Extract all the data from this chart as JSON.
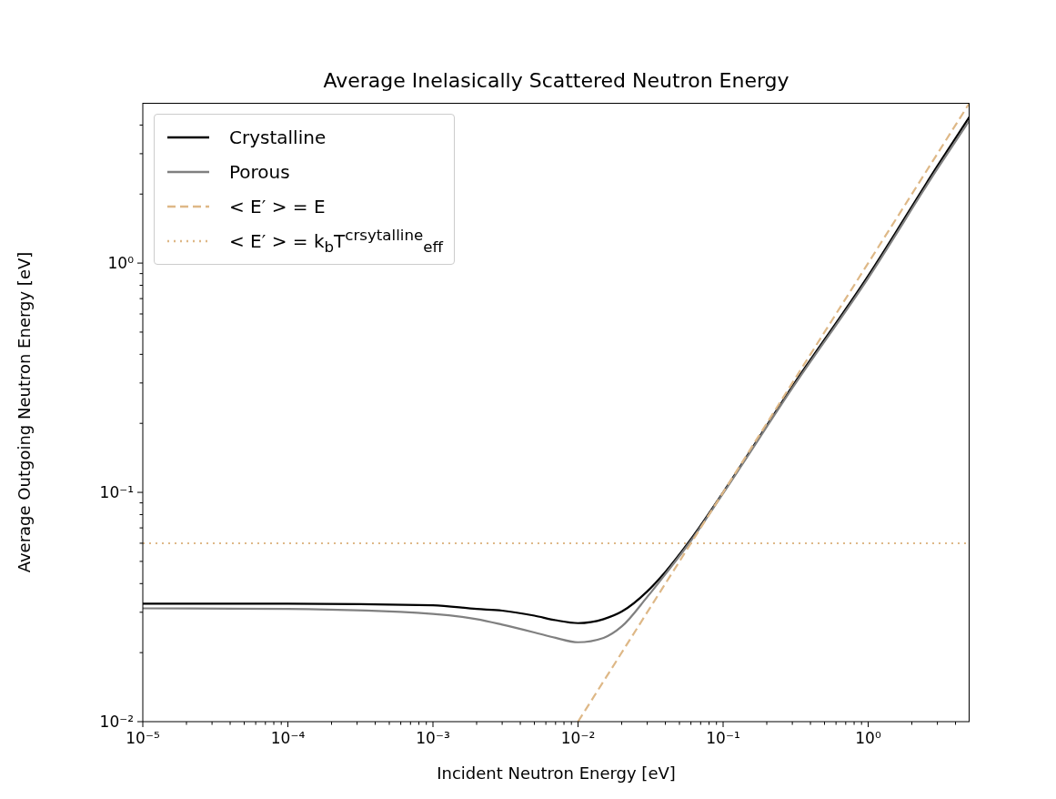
{
  "chart_data": {
    "type": "line",
    "title": "Average Inelasically Scattered Neutron Energy",
    "xlabel": "Incident Neutron Energy [eV]",
    "ylabel": "Average Outgoing Neutron Energy [eV]",
    "log": "xy",
    "legend": "top left",
    "marker": "none",
    "xlim": [
      1e-05,
      5
    ],
    "ylim": [
      0.01,
      5
    ],
    "xticks": [
      {
        "value": 1e-05,
        "label": "10⁻⁵"
      },
      {
        "value": 2e-05,
        "label": null
      },
      {
        "value": 3e-05,
        "label": null
      },
      {
        "value": 4e-05,
        "label": null
      },
      {
        "value": 5e-05,
        "label": null
      },
      {
        "value": 6e-05,
        "label": null
      },
      {
        "value": 7e-05,
        "label": null
      },
      {
        "value": 8e-05,
        "label": null
      },
      {
        "value": 9e-05,
        "label": null
      },
      {
        "value": 0.0001,
        "label": "10⁻⁴"
      },
      {
        "value": 0.0002,
        "label": null
      },
      {
        "value": 0.0003,
        "label": null
      },
      {
        "value": 0.0004,
        "label": null
      },
      {
        "value": 0.0005,
        "label": null
      },
      {
        "value": 0.0006,
        "label": null
      },
      {
        "value": 0.0007,
        "label": null
      },
      {
        "value": 0.0008,
        "label": null
      },
      {
        "value": 0.0009,
        "label": null
      },
      {
        "value": 0.001,
        "label": "10⁻³"
      },
      {
        "value": 0.002,
        "label": null
      },
      {
        "value": 0.003,
        "label": null
      },
      {
        "value": 0.004,
        "label": null
      },
      {
        "value": 0.005,
        "label": null
      },
      {
        "value": 0.006,
        "label": null
      },
      {
        "value": 0.007,
        "label": null
      },
      {
        "value": 0.008,
        "label": null
      },
      {
        "value": 0.009,
        "label": null
      },
      {
        "value": 0.01,
        "label": "10⁻²"
      },
      {
        "value": 0.02,
        "label": null
      },
      {
        "value": 0.03,
        "label": null
      },
      {
        "value": 0.04,
        "label": null
      },
      {
        "value": 0.05,
        "label": null
      },
      {
        "value": 0.06,
        "label": null
      },
      {
        "value": 0.07,
        "label": null
      },
      {
        "value": 0.08,
        "label": null
      },
      {
        "value": 0.09,
        "label": null
      },
      {
        "value": 0.1,
        "label": "10⁻¹"
      },
      {
        "value": 0.2,
        "label": null
      },
      {
        "value": 0.3,
        "label": null
      },
      {
        "value": 0.4,
        "label": null
      },
      {
        "value": 0.5,
        "label": null
      },
      {
        "value": 0.6,
        "label": null
      },
      {
        "value": 0.7,
        "label": null
      },
      {
        "value": 0.8,
        "label": null
      },
      {
        "value": 0.9,
        "label": null
      },
      {
        "value": 1,
        "label": "10⁰"
      },
      {
        "value": 2,
        "label": null
      },
      {
        "value": 3,
        "label": null
      },
      {
        "value": 4,
        "label": null
      }
    ],
    "yticks": [
      {
        "value": 0.01,
        "label": "10⁻²"
      },
      {
        "value": 0.02,
        "label": null
      },
      {
        "value": 0.03,
        "label": null
      },
      {
        "value": 0.04,
        "label": null
      },
      {
        "value": 0.05,
        "label": null
      },
      {
        "value": 0.06,
        "label": null
      },
      {
        "value": 0.07,
        "label": null
      },
      {
        "value": 0.08,
        "label": null
      },
      {
        "value": 0.09,
        "label": null
      },
      {
        "value": 0.1,
        "label": "10⁻¹"
      },
      {
        "value": 0.2,
        "label": null
      },
      {
        "value": 0.3,
        "label": null
      },
      {
        "value": 0.4,
        "label": null
      },
      {
        "value": 0.5,
        "label": null
      },
      {
        "value": 0.6,
        "label": null
      },
      {
        "value": 0.7,
        "label": null
      },
      {
        "value": 0.8,
        "label": null
      },
      {
        "value": 0.9,
        "label": null
      },
      {
        "value": 1,
        "label": "10⁰"
      },
      {
        "value": 2,
        "label": null
      },
      {
        "value": 3,
        "label": null
      },
      {
        "value": 4,
        "label": null
      }
    ],
    "series": [
      {
        "name": "Crystalline",
        "color": "#000000",
        "line_style": "solid",
        "x": [
          1e-05,
          0.0001,
          0.001,
          0.002,
          0.003,
          0.005,
          0.007,
          0.01,
          0.015,
          0.02,
          0.03,
          0.04,
          0.06,
          0.1,
          0.3,
          1,
          3,
          5
        ],
        "values": [
          0.0327,
          0.0327,
          0.0322,
          0.031,
          0.0305,
          0.029,
          0.0277,
          0.0269,
          0.028,
          0.0302,
          0.037,
          0.045,
          0.0625,
          0.1,
          0.29,
          0.88,
          2.65,
          4.35
        ]
      },
      {
        "name": "Porous",
        "color": "#808080",
        "line_style": "solid",
        "x": [
          1e-05,
          0.0001,
          0.001,
          0.002,
          0.003,
          0.005,
          0.007,
          0.01,
          0.015,
          0.02,
          0.03,
          0.04,
          0.06,
          0.1,
          0.3,
          1,
          3,
          5
        ],
        "values": [
          0.0312,
          0.031,
          0.0295,
          0.028,
          0.0265,
          0.0245,
          0.0232,
          0.0222,
          0.0232,
          0.026,
          0.035,
          0.044,
          0.0615,
          0.099,
          0.285,
          0.86,
          2.58,
          4.2
        ]
      },
      {
        "name": "< E′ > = E",
        "color": "#deb887",
        "line_style": "dashed",
        "x": [
          0.01,
          5
        ],
        "values": [
          0.01,
          5
        ]
      }
    ],
    "ref_lines": [
      {
        "axis": "y",
        "value": 0.06,
        "label": "< E′ > = k$_{b}$T$^{crsytalline}$$_{eff}$",
        "color": "#deb887",
        "line_style": "dotted"
      }
    ]
  }
}
